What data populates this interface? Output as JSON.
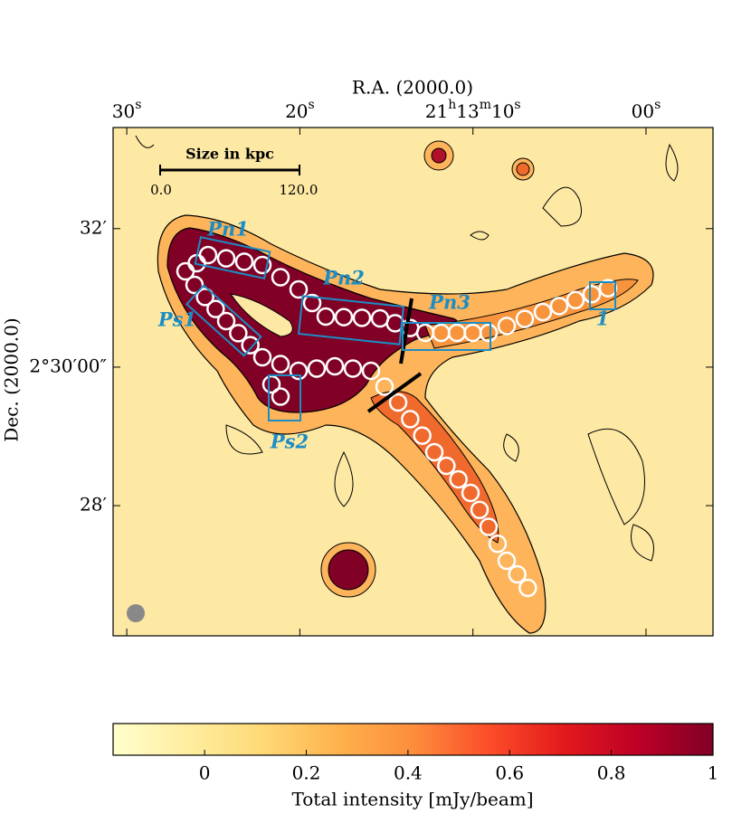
{
  "chart_data": {
    "type": "image",
    "xlabel": "R.A. (2000.0)",
    "ylabel": "Dec. (2000.0)",
    "xlim": [
      30.79,
      -3.87
    ],
    "xticks": [
      {
        "value": 30,
        "label": [
          "30",
          "s"
        ]
      },
      {
        "value": 20,
        "label": [
          "20",
          "s"
        ]
      },
      {
        "value": 10,
        "label": [
          "21",
          "h",
          "13",
          "m",
          "10",
          "s"
        ]
      },
      {
        "value": 0,
        "label": [
          "00",
          "s"
        ]
      }
    ],
    "ylim": [
      26.12,
      33.46
    ],
    "yticks": [
      {
        "value": 32,
        "label": "32′"
      },
      {
        "value": 30,
        "label": "2°30′00″"
      },
      {
        "value": 28,
        "label": "28′"
      }
    ],
    "scalebar": {
      "title": "Size in kpc",
      "labels": [
        "0.0",
        "120.0"
      ]
    },
    "regions": [
      "Pn1",
      "Pn2",
      "Pn3",
      "Ps1",
      "Ps2",
      "1"
    ],
    "colorbar": {
      "label": "Total intensity [mJy/beam]",
      "lim": [
        -0.18,
        1.0
      ],
      "ticks": [
        0,
        0.2,
        0.4,
        0.6,
        0.8,
        1
      ],
      "colormap": [
        "#ffffcc",
        "#ffeda0",
        "#fed976",
        "#feb24c",
        "#fd8d3c",
        "#fc4e2a",
        "#e31a1c",
        "#bd0026",
        "#800026"
      ]
    }
  }
}
